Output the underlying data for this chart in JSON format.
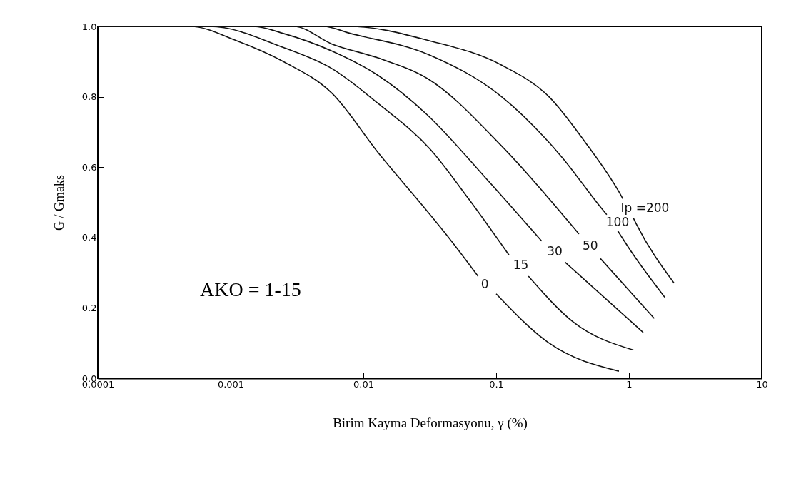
{
  "chart_data": {
    "type": "line",
    "xlabel": "Birim Kayma Deformasyonu, γ (%)",
    "ylabel": "G / Gmaks",
    "annotations": [
      "AKO = 1-15"
    ],
    "log": "x",
    "xlim": [
      0.0001,
      10
    ],
    "xticks": [
      0.0001,
      0.001,
      0.01,
      0.1,
      1,
      10
    ],
    "ylim": [
      0,
      1
    ],
    "yticks": [
      {
        "value": 0,
        "label": "0.0"
      },
      0.2,
      0.4,
      0.6,
      0.8,
      {
        "value": 1,
        "label": "1.0"
      }
    ],
    "grid": false,
    "legend": false,
    "marker": "none",
    "line_style": "solid",
    "series": [
      {
        "name": "0",
        "color": "#111111",
        "x": [
          0.0001,
          0.0005,
          0.0011,
          0.0025,
          0.0058,
          0.013,
          0.031,
          0.046,
          0.073,
          0.086,
          0.1,
          0.25,
          0.84
        ],
        "values": [
          1,
          1,
          0.96,
          0.9,
          0.81,
          0.64,
          0.47,
          0.39,
          0.29,
          null,
          0.24,
          0.1,
          0.02
        ]
      },
      {
        "name": "15",
        "color": "#111111",
        "x": [
          0.0001,
          0.0007,
          0.0025,
          0.0058,
          0.013,
          0.032,
          0.062,
          0.125,
          0.15,
          0.175,
          0.38,
          1.08
        ],
        "values": [
          1,
          1,
          0.94,
          0.88,
          0.78,
          0.65,
          0.51,
          0.35,
          null,
          0.29,
          0.16,
          0.08
        ]
      },
      {
        "name": "30",
        "color": "#111111",
        "x": [
          0.0001,
          0.0015,
          0.0025,
          0.0058,
          0.013,
          0.03,
          0.083,
          0.22,
          0.27,
          0.33,
          1.28
        ],
        "values": [
          1,
          1,
          0.98,
          0.93,
          0.86,
          0.75,
          0.57,
          0.39,
          null,
          0.33,
          0.13
        ]
      },
      {
        "name": "50",
        "color": "#111111",
        "x": [
          0.0001,
          0.003,
          0.0058,
          0.013,
          0.031,
          0.11,
          0.42,
          0.5,
          0.61,
          1.55
        ],
        "values": [
          1,
          1,
          0.95,
          0.91,
          0.85,
          0.66,
          0.41,
          null,
          0.34,
          0.17
        ]
      },
      {
        "name": "100",
        "color": "#111111",
        "x": [
          0.0001,
          0.005,
          0.008,
          0.031,
          0.11,
          0.31,
          0.63,
          0.68,
          0.75,
          0.82,
          1.04,
          1.86
        ],
        "values": [
          1,
          1,
          0.98,
          0.92,
          0.8,
          0.63,
          0.48,
          0.465,
          null,
          0.42,
          0.36,
          0.23
        ]
      },
      {
        "name": "Ip =200",
        "color": "#111111",
        "x": [
          0.0001,
          0.008,
          0.031,
          0.11,
          0.25,
          0.47,
          0.84,
          0.9,
          0.97,
          1.08,
          1.13,
          2.19
        ],
        "values": [
          1,
          1,
          0.96,
          0.89,
          0.8,
          0.67,
          0.53,
          0.51,
          null,
          0.455,
          0.44,
          0.27
        ]
      }
    ]
  }
}
